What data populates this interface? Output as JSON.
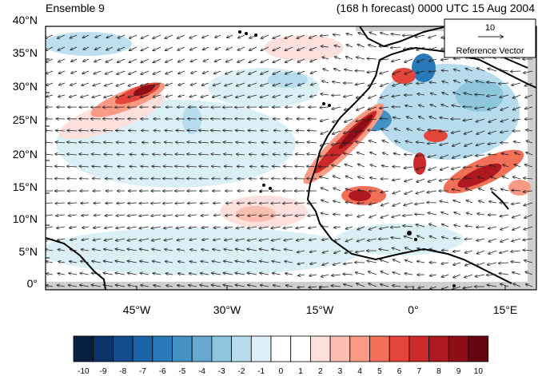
{
  "header": {
    "left_title": "Ensemble 9",
    "right_title": "(168 h forecast) 0000 UTC 15 Aug 2004"
  },
  "axes": {
    "y_ticks": [
      "40°N",
      "35°N",
      "30°N",
      "25°N",
      "20°N",
      "15°N",
      "10°N",
      "5°N",
      "0°"
    ],
    "x_ticks": [
      "45°W",
      "30°W",
      "15°W",
      "0°",
      "15°E"
    ]
  },
  "reference_vector": {
    "magnitude_label": "10",
    "caption": "Reference Vector"
  },
  "colorbar": {
    "labels": [
      "-10",
      "-9",
      "-8",
      "-7",
      "-6",
      "-5",
      "-4",
      "-3",
      "-2",
      "-1",
      "0",
      "1",
      "2",
      "3",
      "4",
      "5",
      "6",
      "7",
      "8",
      "9",
      "10"
    ],
    "colors": [
      "#08203f",
      "#0b3468",
      "#124c8c",
      "#1c64a8",
      "#2b7ab8",
      "#4392c3",
      "#63a9d0",
      "#8ec6de",
      "#b7dced",
      "#dbeff7",
      "#ffffff",
      "#ffffff",
      "#fde0dc",
      "#fbbfb1",
      "#f99a84",
      "#f26f58",
      "#e4453a",
      "#cc2a2a",
      "#b0181f",
      "#8d0e16",
      "#660510"
    ]
  }
}
